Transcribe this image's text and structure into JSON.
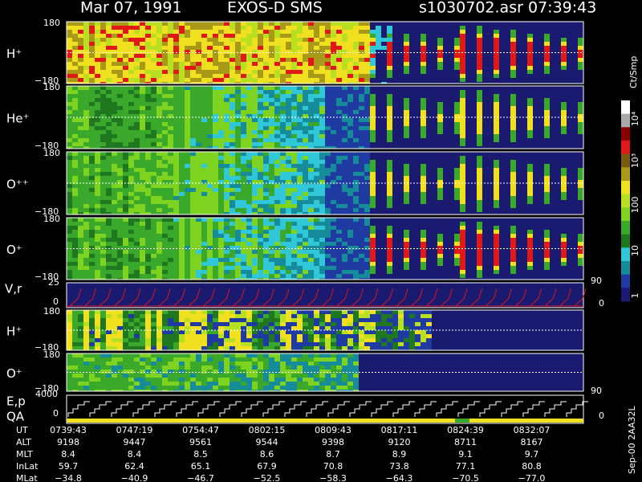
{
  "header": {
    "date": "Mar 07, 1991",
    "title": "EXOS-D SMS",
    "file": "s1030702.asr",
    "time": "07:39:43"
  },
  "panels": [
    {
      "label": "H⁺",
      "ymax": "180",
      "ymin": "−180"
    },
    {
      "label": "He⁺",
      "ymax": "180",
      "ymin": "−180"
    },
    {
      "label": "O⁺⁺",
      "ymax": "180",
      "ymin": "−180"
    },
    {
      "label": "O⁺",
      "ymax": "180",
      "ymin": "−180"
    },
    {
      "label": "H⁺",
      "ymax": "180",
      "ymin": "−180"
    },
    {
      "label": "O⁺",
      "ymax": "180",
      "ymin": "−180"
    }
  ],
  "vr": {
    "label": "V,r",
    "ymax": "25",
    "ymin": "0",
    "right_top": "90",
    "right_bottom": "0"
  },
  "ep": {
    "label": "E,p",
    "label2": "QA",
    "ymax": "4000",
    "ymin": "0",
    "right_top": "90",
    "right_bottom": "0"
  },
  "colorbar": {
    "unit": "Ct/Smp",
    "ticks": [
      "10⁴",
      "10³",
      "100",
      "10",
      "1"
    ]
  },
  "footer": {
    "rows": [
      [
        "UT",
        "0739:43",
        "0747:19",
        "0754:47",
        "0802:15",
        "0809:43",
        "0817:11",
        "0824:39",
        "0832:07"
      ],
      [
        "ALT",
        "9198",
        "9447",
        "9561",
        "9544",
        "9398",
        "9120",
        "8711",
        "8167"
      ],
      [
        "MLT",
        "8.4",
        "8.4",
        "8.5",
        "8.6",
        "8.7",
        "8.9",
        "9.1",
        "9.7"
      ],
      [
        "InLat",
        "59.7",
        "62.4",
        "65.1",
        "67.9",
        "70.8",
        "73.8",
        "77.1",
        "80.8"
      ],
      [
        "MLat",
        "−34.8",
        "−40.9",
        "−46.7",
        "−52.5",
        "−58.3",
        "−64.3",
        "−70.5",
        "−77.0"
      ]
    ]
  },
  "side_note": "Sep-00 2AA32L"
}
